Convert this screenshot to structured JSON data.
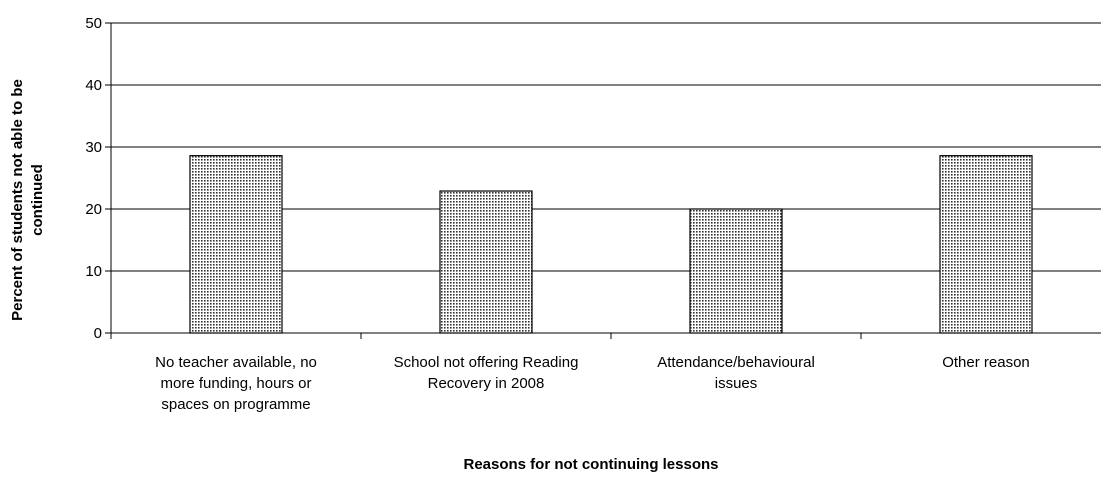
{
  "chart_data": {
    "type": "bar",
    "title": "",
    "categories": [
      [
        "No teacher available, no",
        "more funding, hours or",
        "spaces on programme"
      ],
      [
        "School not offering Reading",
        "Recovery in 2008"
      ],
      [
        "Attendance/behavioural",
        "issues"
      ],
      [
        "Other reason"
      ]
    ],
    "values": [
      28.6,
      22.9,
      20.0,
      28.6
    ],
    "xlabel": "Reasons for not continuing lessons",
    "ylabel": [
      "Percent of students not able to be",
      "continued"
    ],
    "ylim": [
      0,
      50
    ],
    "yticks": [
      0,
      10,
      20,
      30,
      40,
      50
    ],
    "grid": true,
    "legend": "none",
    "bar_fill": "dotted-gray",
    "colors": {
      "bar_dot": "#333333",
      "bar_bg": "#ffffff",
      "grid": "#000000",
      "axis": "#000000"
    }
  }
}
